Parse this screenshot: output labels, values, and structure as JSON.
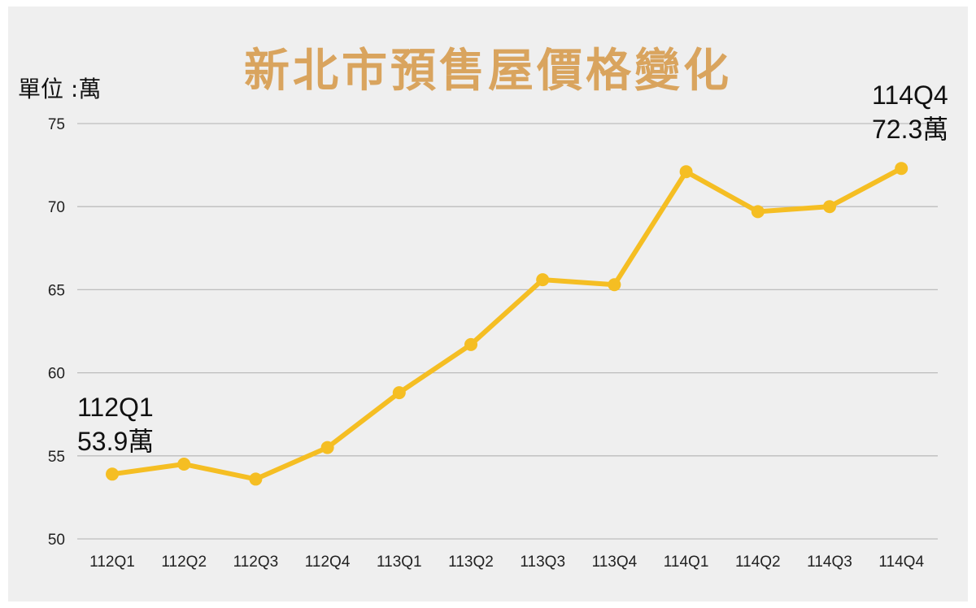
{
  "chart_data": {
    "type": "line",
    "title": "新北市預售屋價格變化",
    "unit_label": "單位 :萬",
    "categories": [
      "112Q1",
      "112Q2",
      "112Q3",
      "112Q4",
      "113Q1",
      "113Q2",
      "113Q3",
      "113Q4",
      "114Q1",
      "114Q2",
      "114Q3",
      "114Q4"
    ],
    "values": [
      53.9,
      54.5,
      53.6,
      55.5,
      58.8,
      61.7,
      65.6,
      65.3,
      72.1,
      69.7,
      70.0,
      72.3
    ],
    "ylim": [
      50,
      75
    ],
    "yticks": [
      "50",
      "55",
      "60",
      "65",
      "70",
      "75"
    ],
    "grid": true,
    "line_color": "#f5be23",
    "annotations": [
      {
        "category": "112Q1",
        "line1": "112Q1",
        "line2": "53.9萬"
      },
      {
        "category": "114Q4",
        "line1": "114Q4",
        "line2": "72.3萬"
      }
    ]
  }
}
